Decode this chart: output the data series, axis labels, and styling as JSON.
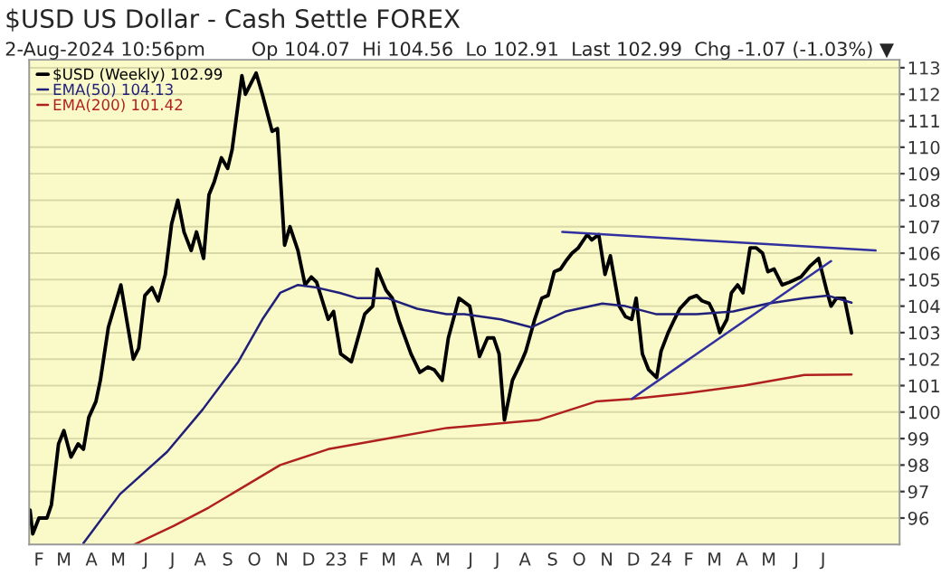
{
  "chart_data": {
    "type": "line",
    "title": "$USD US Dollar - Cash Settle FOREX",
    "subtitle": "2-Aug-2024 10:56pm",
    "annotations": [
      "Op 104.07  Hi 104.56  Lo 102.91  Last 102.99  Chg -1.07 (-1.03%) ▼"
    ],
    "series": [
      {
        "name": "$USD (Weekly) 102.99",
        "color": "#000000",
        "x": [
          "2022-01-22",
          "2022-01-25",
          "2022-02-01",
          "2022-02-10",
          "2022-02-15",
          "2022-02-23",
          "2022-03-01",
          "2022-03-09",
          "2022-03-17",
          "2022-03-23",
          "2022-03-29",
          "2022-04-06",
          "2022-04-11",
          "2022-04-20",
          "2022-05-04",
          "2022-05-18",
          "2022-05-24",
          "2022-05-31",
          "2022-06-08",
          "2022-06-15",
          "2022-06-23",
          "2022-06-30",
          "2022-07-07",
          "2022-07-14",
          "2022-07-22",
          "2022-07-28",
          "2022-08-05",
          "2022-08-11",
          "2022-08-17",
          "2022-08-25",
          "2022-09-01",
          "2022-09-06",
          "2022-09-17",
          "2022-09-21",
          "2022-10-03",
          "2022-10-10",
          "2022-10-21",
          "2022-10-27",
          "2022-11-04",
          "2022-11-10",
          "2022-11-19",
          "2022-11-27",
          "2022-12-04",
          "2022-12-10",
          "2022-12-23",
          "2022-12-29",
          "2023-01-06",
          "2023-01-18",
          "2023-02-02",
          "2023-02-11",
          "2023-02-16",
          "2023-02-26",
          "2023-03-05",
          "2023-03-13",
          "2023-03-26",
          "2023-04-05",
          "2023-04-14",
          "2023-04-21",
          "2023-04-30",
          "2023-05-07",
          "2023-05-19",
          "2023-05-31",
          "2023-06-11",
          "2023-06-20",
          "2023-06-27",
          "2023-07-03",
          "2023-07-09",
          "2023-07-18",
          "2023-07-28",
          "2023-08-02",
          "2023-08-12",
          "2023-08-20",
          "2023-08-27",
          "2023-09-03",
          "2023-09-10",
          "2023-09-16",
          "2023-09-23",
          "2023-09-30",
          "2023-10-10",
          "2023-10-15",
          "2023-10-23",
          "2023-10-30",
          "2023-11-05",
          "2023-11-15",
          "2023-11-22",
          "2023-11-29",
          "2023-12-04",
          "2023-12-11",
          "2023-12-18",
          "2023-12-27",
          "2024-01-01",
          "2024-01-09",
          "2024-01-16",
          "2024-01-22",
          "2024-02-02",
          "2024-02-10",
          "2024-02-16",
          "2024-02-24",
          "2024-03-01",
          "2024-03-07",
          "2024-03-15",
          "2024-03-20",
          "2024-03-27",
          "2024-04-02",
          "2024-04-10",
          "2024-04-17",
          "2024-04-24",
          "2024-04-30",
          "2024-05-07",
          "2024-05-16",
          "2024-05-24",
          "2024-06-06",
          "2024-06-16",
          "2024-06-26",
          "2024-07-05",
          "2024-07-10",
          "2024-07-16",
          "2024-07-25",
          "2024-08-02"
        ],
        "values": [
          96.3,
          95.4,
          96.0,
          96.0,
          96.5,
          98.8,
          99.3,
          98.3,
          98.8,
          98.6,
          99.8,
          100.4,
          101.2,
          103.2,
          104.8,
          102.0,
          102.4,
          104.4,
          104.7,
          104.2,
          105.2,
          107.1,
          108.0,
          106.8,
          106.1,
          106.8,
          105.8,
          108.2,
          108.7,
          109.6,
          109.2,
          109.9,
          112.7,
          112.0,
          112.8,
          112.0,
          110.6,
          110.7,
          106.3,
          107.0,
          106.1,
          104.8,
          105.1,
          104.9,
          103.5,
          103.8,
          102.2,
          101.9,
          103.7,
          104.0,
          105.4,
          104.6,
          104.3,
          103.4,
          102.2,
          101.5,
          101.7,
          101.6,
          101.2,
          102.8,
          104.3,
          104.0,
          102.1,
          102.8,
          102.8,
          102.2,
          99.7,
          101.2,
          101.9,
          102.3,
          103.5,
          104.3,
          104.4,
          105.3,
          105.4,
          105.7,
          106.0,
          106.2,
          106.7,
          106.5,
          106.7,
          105.2,
          105.9,
          104.0,
          103.6,
          103.5,
          104.3,
          102.2,
          101.6,
          101.3,
          102.3,
          103.0,
          103.5,
          103.9,
          104.3,
          104.4,
          104.2,
          104.1,
          103.7,
          103.0,
          103.5,
          104.5,
          104.8,
          104.5,
          106.2,
          106.2,
          106.0,
          105.3,
          105.4,
          104.8,
          104.9,
          105.1,
          105.5,
          105.8,
          104.6,
          104.0,
          104.3,
          104.3,
          102.99
        ]
      },
      {
        "name": "EMA(50) 104.13",
        "color": "#20207a",
        "x": [
          "2022-03-23",
          "2022-05-03",
          "2022-06-25",
          "2022-08-04",
          "2022-09-13",
          "2022-10-10",
          "2022-10-30",
          "2022-11-19",
          "2022-12-10",
          "2023-01-05",
          "2023-01-25",
          "2023-02-28",
          "2023-04-02",
          "2023-05-05",
          "2023-05-25",
          "2023-07-05",
          "2023-08-08",
          "2023-09-16",
          "2023-10-27",
          "2023-11-22",
          "2023-12-26",
          "2024-02-10",
          "2024-03-22",
          "2024-04-30",
          "2024-06-10",
          "2024-07-06",
          "2024-08-02"
        ],
        "values": [
          95.05,
          96.9,
          98.5,
          100.1,
          101.9,
          103.5,
          104.5,
          104.8,
          104.7,
          104.5,
          104.3,
          104.3,
          103.9,
          103.7,
          103.7,
          103.5,
          103.2,
          103.8,
          104.1,
          104.0,
          103.7,
          103.7,
          103.8,
          104.1,
          104.3,
          104.4,
          104.13
        ]
      },
      {
        "name": "EMA(200) 101.42",
        "color": "#b02020",
        "x": [
          "2022-05-19",
          "2022-07-02",
          "2022-08-11",
          "2022-09-20",
          "2022-10-30",
          "2022-12-23",
          "2023-02-28",
          "2023-05-05",
          "2023-07-13",
          "2023-08-16",
          "2023-10-20",
          "2023-11-29",
          "2024-01-27",
          "2024-04-03",
          "2024-06-10",
          "2024-08-02"
        ],
        "values": [
          95.0,
          95.7,
          96.4,
          97.2,
          98.0,
          98.6,
          99.0,
          99.4,
          99.6,
          99.7,
          100.4,
          100.5,
          100.7,
          101.0,
          101.4,
          101.42
        ]
      },
      {
        "color": "#3030a0",
        "x": [
          "2023-09-12",
          "2024-08-29"
        ],
        "values": [
          106.8,
          106.1
        ]
      },
      {
        "color": "#3030a0",
        "x": [
          "2023-11-29",
          "2024-07-10"
        ],
        "values": [
          100.5,
          105.7
        ]
      }
    ],
    "xlim": [
      "2022-01-21",
      "2024-09-25"
    ],
    "xticks": [
      {
        "value": "2022-02-01",
        "label": "F"
      },
      {
        "value": "2022-03-01",
        "label": "M"
      },
      {
        "value": "2022-04-01",
        "label": "A"
      },
      {
        "value": "2022-05-01",
        "label": "M"
      },
      {
        "value": "2022-06-01",
        "label": "J"
      },
      {
        "value": "2022-07-01",
        "label": "J"
      },
      {
        "value": "2022-08-01",
        "label": "A"
      },
      {
        "value": "2022-09-01",
        "label": "S"
      },
      {
        "value": "2022-10-01",
        "label": "O"
      },
      {
        "value": "2022-11-01",
        "label": "N"
      },
      {
        "value": "2022-12-01",
        "label": "D"
      },
      {
        "value": "2023-01-01",
        "label": "23"
      },
      {
        "value": "2023-02-01",
        "label": "F"
      },
      {
        "value": "2023-03-01",
        "label": "M"
      },
      {
        "value": "2023-04-01",
        "label": "A"
      },
      {
        "value": "2023-05-01",
        "label": "M"
      },
      {
        "value": "2023-06-01",
        "label": "J"
      },
      {
        "value": "2023-07-01",
        "label": "J"
      },
      {
        "value": "2023-08-01",
        "label": "A"
      },
      {
        "value": "2023-09-01",
        "label": "S"
      },
      {
        "value": "2023-10-01",
        "label": "O"
      },
      {
        "value": "2023-11-01",
        "label": "N"
      },
      {
        "value": "2023-12-01",
        "label": "D"
      },
      {
        "value": "2024-01-01",
        "label": "24"
      },
      {
        "value": "2024-02-01",
        "label": "F"
      },
      {
        "value": "2024-03-01",
        "label": "M"
      },
      {
        "value": "2024-04-01",
        "label": "A"
      },
      {
        "value": "2024-05-01",
        "label": "M"
      },
      {
        "value": "2024-06-01",
        "label": "J"
      },
      {
        "value": "2024-07-01",
        "label": "J"
      }
    ],
    "ylim": [
      95,
      113.3
    ],
    "yticks": [
      96,
      97,
      98,
      99,
      100,
      101,
      102,
      103,
      104,
      105,
      106,
      107,
      108,
      109,
      110,
      111,
      112,
      113
    ],
    "grid": "y",
    "legend": "top left"
  }
}
